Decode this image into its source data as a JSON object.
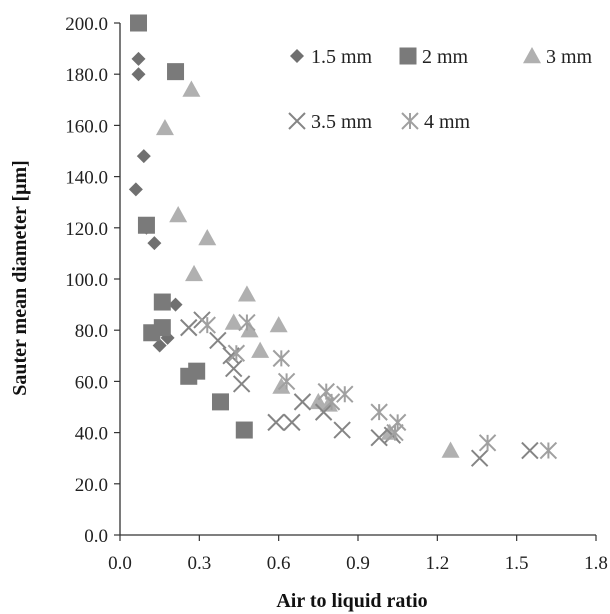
{
  "chart_data": {
    "type": "scatter",
    "xlabel": "Air to liquid ratio",
    "ylabel": "Sauter mean diameter [μm]",
    "xlim": [
      0,
      1.8
    ],
    "ylim": [
      0,
      200
    ],
    "x_ticks": [
      "0.0",
      "0.3",
      "0.6",
      "0.9",
      "1.2",
      "1.5",
      "1.8"
    ],
    "y_ticks": [
      "0.0",
      "20.0",
      "40.0",
      "60.0",
      "80.0",
      "100.0",
      "120.0",
      "140.0",
      "160.0",
      "180.0",
      "200.0"
    ],
    "grid": false,
    "legend_position": "top-right",
    "series": [
      {
        "name": "1.5 mm",
        "marker": "diamond",
        "color": "#707070",
        "points": [
          [
            0.07,
            186
          ],
          [
            0.07,
            180
          ],
          [
            0.09,
            148
          ],
          [
            0.06,
            135
          ],
          [
            0.1,
            120
          ],
          [
            0.13,
            114
          ],
          [
            0.21,
            90
          ],
          [
            0.18,
            77
          ],
          [
            0.15,
            74
          ]
        ]
      },
      {
        "name": "2 mm",
        "marker": "square",
        "color": "#7a7a7a",
        "points": [
          [
            0.07,
            200
          ],
          [
            0.21,
            181
          ],
          [
            0.1,
            121
          ],
          [
            0.16,
            91
          ],
          [
            0.12,
            79
          ],
          [
            0.16,
            81
          ],
          [
            0.29,
            64
          ],
          [
            0.26,
            62
          ],
          [
            0.38,
            52
          ],
          [
            0.47,
            41
          ]
        ]
      },
      {
        "name": "3 mm",
        "marker": "triangle",
        "color": "#b0b0b0",
        "points": [
          [
            0.27,
            174
          ],
          [
            0.17,
            159
          ],
          [
            0.22,
            125
          ],
          [
            0.33,
            116
          ],
          [
            0.28,
            102
          ],
          [
            0.48,
            94
          ],
          [
            0.43,
            83
          ],
          [
            0.6,
            82
          ],
          [
            0.49,
            80
          ],
          [
            0.53,
            72
          ],
          [
            0.61,
            58
          ],
          [
            0.75,
            52
          ],
          [
            0.79,
            51
          ],
          [
            1.02,
            40
          ],
          [
            1.25,
            33
          ]
        ]
      },
      {
        "name": "3.5 mm",
        "marker": "x",
        "color": "#858585",
        "points": [
          [
            0.31,
            84
          ],
          [
            0.26,
            81
          ],
          [
            0.37,
            76
          ],
          [
            0.42,
            70
          ],
          [
            0.43,
            65
          ],
          [
            0.46,
            59
          ],
          [
            0.59,
            44
          ],
          [
            0.65,
            44
          ],
          [
            0.69,
            52
          ],
          [
            0.77,
            48
          ],
          [
            0.84,
            41
          ],
          [
            0.98,
            38
          ],
          [
            1.03,
            39
          ],
          [
            1.36,
            30
          ],
          [
            1.55,
            33
          ]
        ]
      },
      {
        "name": "4 mm",
        "marker": "asterisk",
        "color": "#a0a0a0",
        "points": [
          [
            0.33,
            82
          ],
          [
            0.48,
            83
          ],
          [
            0.44,
            71
          ],
          [
            0.61,
            69
          ],
          [
            0.63,
            60
          ],
          [
            0.78,
            56
          ],
          [
            0.85,
            55
          ],
          [
            0.8,
            52
          ],
          [
            0.98,
            48
          ],
          [
            1.05,
            44
          ],
          [
            1.04,
            40
          ],
          [
            1.39,
            36
          ],
          [
            1.62,
            33
          ]
        ]
      }
    ]
  }
}
